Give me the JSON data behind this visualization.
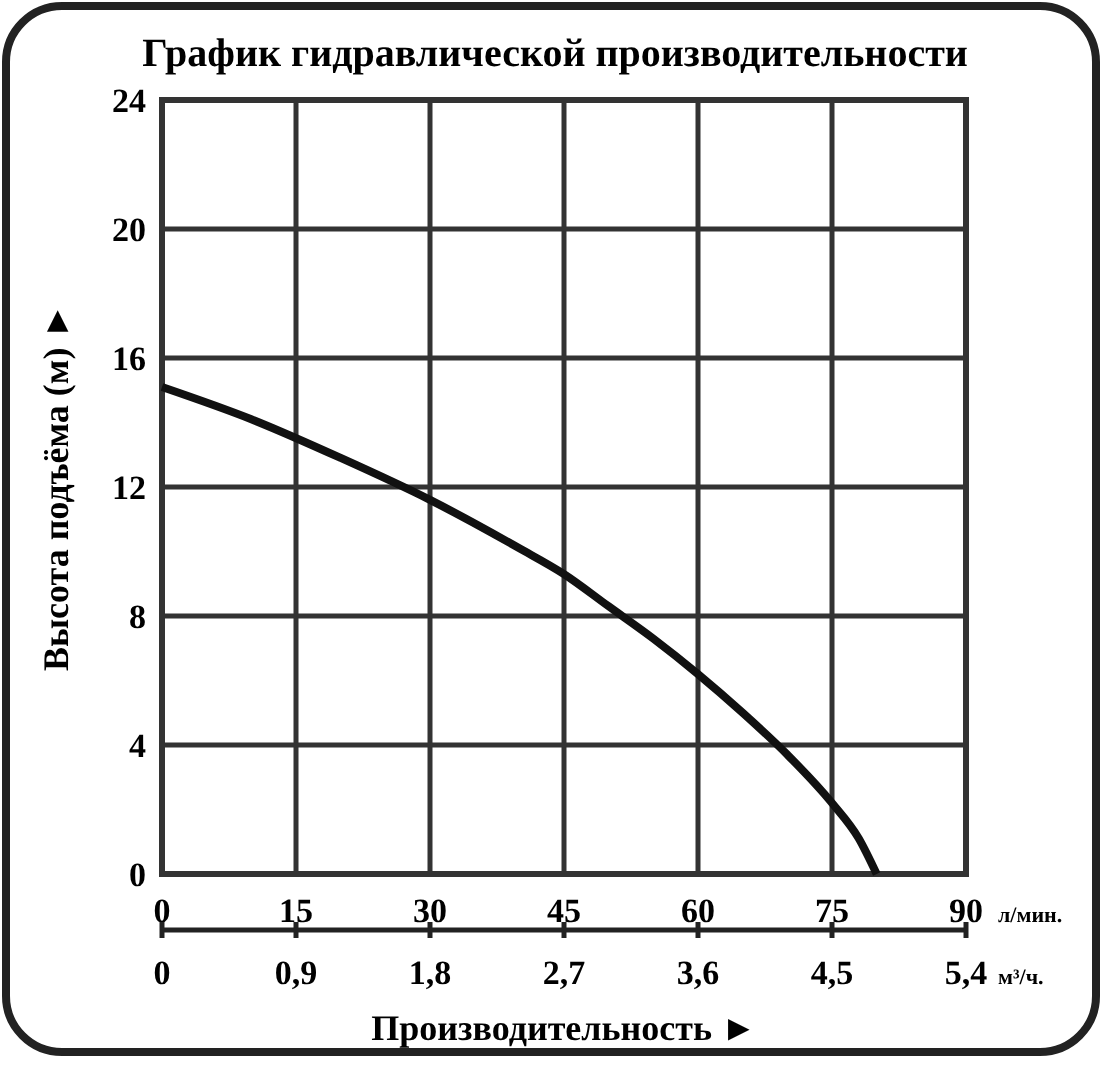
{
  "chart_data": {
    "type": "line",
    "title": "График гидравлической производительности",
    "xlabel": "Производительность ►",
    "ylabel": "Высота подъёма (м) ►",
    "x": [
      0,
      10,
      20,
      30,
      40,
      45,
      50,
      55,
      60,
      65,
      70,
      75,
      78,
      80
    ],
    "series": [
      {
        "color": "#111111",
        "values": [
          15.1,
          14.1,
          12.9,
          11.6,
          10.1,
          9.3,
          8.3,
          7.3,
          6.2,
          5.0,
          3.7,
          2.2,
          1.1,
          0
        ]
      }
    ],
    "xlim": [
      0,
      90
    ],
    "xticks": [
      0,
      15,
      30,
      45,
      60,
      75,
      90
    ],
    "x2lim": [
      0,
      5.4
    ],
    "x2ticks": [
      0,
      {
        "value": 0.9,
        "label": "0,9"
      },
      {
        "value": 1.8,
        "label": "1,8"
      },
      {
        "value": 2.7,
        "label": "2,7"
      },
      {
        "value": 3.6,
        "label": "3,6"
      },
      {
        "value": 4.5,
        "label": "4,5"
      },
      {
        "value": 5.4,
        "label": "5,4"
      }
    ],
    "ylim": [
      0,
      24
    ],
    "yticks": [
      0,
      4,
      8,
      12,
      16,
      20,
      24
    ],
    "annotations": [
      "л/мин.",
      "м³/ч."
    ],
    "grid": true,
    "marker": "none",
    "line_style": "solid"
  }
}
